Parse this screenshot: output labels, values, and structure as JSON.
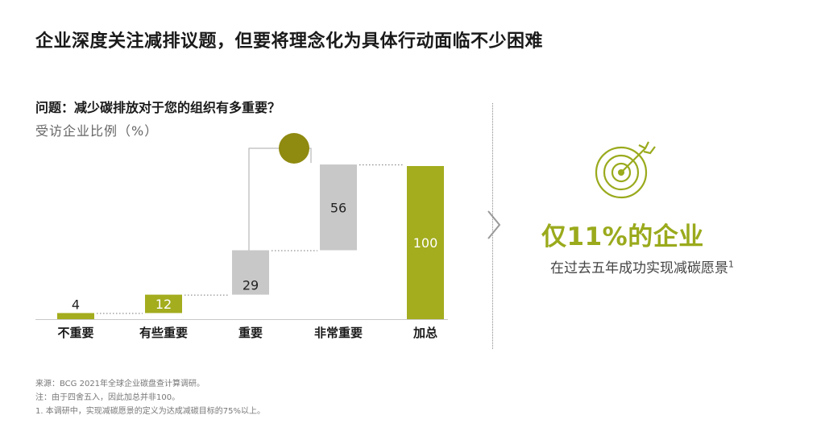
{
  "title": "企业深度关注减排议题，但要将理念化为具体行动面临不少困难",
  "question": "问题：减少碳排放对于您的组织有多重要？",
  "unit": "受访企业比例（%）",
  "chart_data": {
    "type": "bar",
    "subtype": "waterfall",
    "categories": [
      "不重要",
      "有些重要",
      "重要",
      "非常重要",
      "加总"
    ],
    "values": [
      4,
      12,
      29,
      56,
      100
    ],
    "cumulative_start": [
      0,
      4,
      16,
      45,
      0
    ],
    "value_labels": [
      "4",
      "12",
      "29",
      "56",
      "100"
    ],
    "ylim": [
      0,
      100
    ],
    "grid": false,
    "colors": [
      "#a3ad1e",
      "#a3ad1e",
      "#c8c8c8",
      "#c8c8c8",
      "#a3ad1e"
    ]
  },
  "callout": {
    "headline": "仅11%的企业",
    "subtext": "在过去五年成功实现减碳愿景",
    "footnote_mark": "1",
    "icon": "target-icon",
    "accent_color": "#9aaa1c"
  },
  "footnotes": [
    "来源：BCG 2021年全球企业碳盘查计算调研。",
    "注：由于四舍五入，因此加总并非100。",
    "1. 本调研中，实现减碳愿景的定义为达成减碳目标的75%以上。"
  ]
}
